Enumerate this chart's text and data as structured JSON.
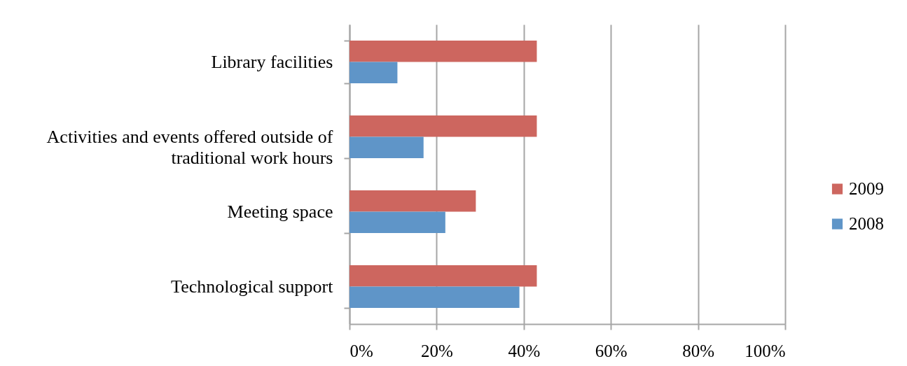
{
  "chart_data": {
    "type": "bar",
    "orientation": "horizontal",
    "categories": [
      "Library facilities",
      "Activities and events offered outside of traditional work hours",
      "Meeting space",
      "Technological support"
    ],
    "series": [
      {
        "name": "2009",
        "color": "#cd665f",
        "values": [
          43,
          43,
          29,
          43
        ]
      },
      {
        "name": "2008",
        "color": "#5f95c8",
        "values": [
          11,
          17,
          22,
          39
        ]
      }
    ],
    "xlim": [
      0,
      100
    ],
    "xticks": [
      {
        "value": 0,
        "label": "0%"
      },
      {
        "value": 20,
        "label": "20%"
      },
      {
        "value": 40,
        "label": "40%"
      },
      {
        "value": 60,
        "label": "60%"
      },
      {
        "value": 80,
        "label": "80%"
      },
      {
        "value": 100,
        "label": "100%"
      }
    ],
    "grid": "x",
    "legend": "right"
  }
}
